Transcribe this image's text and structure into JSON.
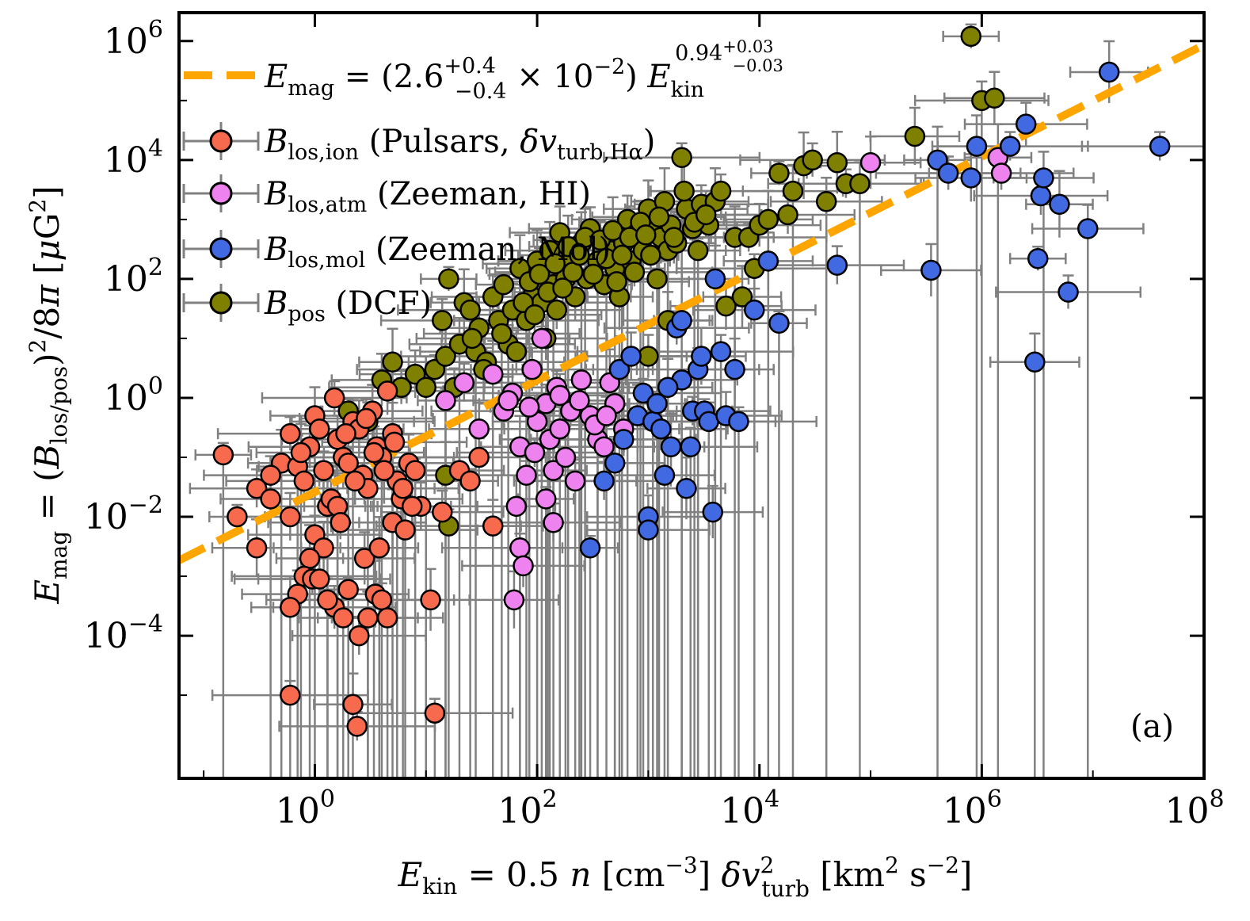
{
  "chart_data": {
    "type": "scatter",
    "title": "",
    "xlabel": "E_kin = 0.5 n [cm^-3] δv_turb^2 [km^2 s^-2]",
    "ylabel": "E_mag = (B_los/pos)^2 / 8π [μG^2]",
    "x_scale": "log",
    "y_scale": "log",
    "xlim": [
      0.06,
      100000000.0
    ],
    "ylim": [
      4e-07,
      3000000.0
    ],
    "x_ticks": [
      {
        "v": 1,
        "base": "10",
        "exp": "0"
      },
      {
        "v": 100,
        "base": "10",
        "exp": "2"
      },
      {
        "v": 10000,
        "base": "10",
        "exp": "4"
      },
      {
        "v": 1000000,
        "base": "10",
        "exp": "6"
      },
      {
        "v": 100000000,
        "base": "10",
        "exp": "8"
      }
    ],
    "y_ticks": [
      {
        "v": 0.0001,
        "base": "10",
        "exp": "−4"
      },
      {
        "v": 0.01,
        "base": "10",
        "exp": "−2"
      },
      {
        "v": 1,
        "base": "10",
        "exp": "0"
      },
      {
        "v": 100,
        "base": "10",
        "exp": "2"
      },
      {
        "v": 10000,
        "base": "10",
        "exp": "4"
      },
      {
        "v": 1000000,
        "base": "10",
        "exp": "6"
      }
    ],
    "panel_label": "(a)",
    "legend_placement": "top-left",
    "fit": {
      "name": "E_mag = (2.6 +0.4 −0.4 × 10^−2) E_kin ^(0.94 +0.03 −0.03)",
      "A": 0.026,
      "A_err_plus": 0.004,
      "A_err_minus": 0.004,
      "exponent": 0.94,
      "exp_err_plus": 0.03,
      "exp_err_minus": 0.03,
      "color": "#FFA500"
    },
    "series": [
      {
        "name": "B_los,ion (Pulsars, δv_turb,Hα)",
        "color": "#F86A4D",
        "points": [
          [
            0.15,
            0.11
          ],
          [
            0.3,
            0.03
          ],
          [
            0.4,
            0.02
          ],
          [
            0.5,
            0.08
          ],
          [
            0.6,
            0.25
          ],
          [
            0.6,
            0.01
          ],
          [
            0.7,
            0.07
          ],
          [
            0.8,
            0.04
          ],
          [
            0.9,
            0.15
          ],
          [
            1.0,
            0.5
          ],
          [
            1.1,
            0.3
          ],
          [
            1.2,
            0.06
          ],
          [
            1.3,
            0.015
          ],
          [
            1.4,
            0.02
          ],
          [
            1.5,
            1.0
          ],
          [
            1.6,
            0.2
          ],
          [
            1.8,
            0.1
          ],
          [
            2.0,
            0.08
          ],
          [
            2.2,
            0.4
          ],
          [
            2.5,
            0.3
          ],
          [
            2.7,
            0.05
          ],
          [
            3.0,
            0.03
          ],
          [
            3.3,
            0.6
          ],
          [
            3.6,
            0.15
          ],
          [
            4.0,
            0.1
          ],
          [
            4.5,
            1.3
          ],
          [
            5.0,
            0.25
          ],
          [
            5.5,
            0.04
          ],
          [
            6.0,
            0.02
          ],
          [
            7.0,
            0.08
          ],
          [
            8.0,
            0.06
          ],
          [
            1.0,
            0.005
          ],
          [
            1.2,
            0.003
          ],
          [
            0.9,
            0.002
          ],
          [
            0.8,
            0.001
          ],
          [
            0.7,
            0.0005
          ],
          [
            0.6,
            0.0003
          ],
          [
            0.6,
            1e-05
          ],
          [
            1.5,
            0.0003
          ],
          [
            1.8,
            0.0002
          ],
          [
            2.0,
            0.0006
          ],
          [
            2.5,
            0.0001
          ],
          [
            3.0,
            0.0002
          ],
          [
            3.5,
            0.0005
          ],
          [
            4.0,
            0.0004
          ],
          [
            4.5,
            0.0002
          ],
          [
            2.2,
            7e-06
          ],
          [
            2.4,
            3e-06
          ],
          [
            1.3,
            0.0004
          ],
          [
            0.3,
            0.003
          ],
          [
            0.2,
            0.01
          ],
          [
            0.4,
            0.05
          ],
          [
            2.8,
            0.002
          ],
          [
            5.0,
            0.008
          ],
          [
            6.5,
            0.006
          ],
          [
            9.0,
            0.015
          ],
          [
            11.0,
            0.0004
          ],
          [
            12.0,
            5e-06
          ],
          [
            14.0,
            0.012
          ],
          [
            20.0,
            0.06
          ],
          [
            25.0,
            0.04
          ],
          [
            30.0,
            0.1
          ],
          [
            40.0,
            0.007
          ],
          [
            1.6,
            0.015
          ],
          [
            1.7,
            0.008
          ],
          [
            2.3,
            0.04
          ],
          [
            3.8,
            0.003
          ],
          [
            0.95,
            0.0009
          ],
          [
            1.1,
            0.0009
          ],
          [
            0.75,
            0.12
          ],
          [
            1.9,
            0.25
          ],
          [
            2.9,
            0.45
          ],
          [
            3.4,
            0.12
          ],
          [
            4.2,
            0.06
          ],
          [
            5.2,
            0.18
          ],
          [
            6.2,
            0.03
          ],
          [
            7.5,
            0.015
          ]
        ]
      },
      {
        "name": "B_los,atm (Zeeman, HI)",
        "color": "#EE82EE",
        "points": [
          [
            15.0,
            0.9
          ],
          [
            22.0,
            1.8
          ],
          [
            30.0,
            0.3
          ],
          [
            40.0,
            2.5
          ],
          [
            50.0,
            0.6
          ],
          [
            60.0,
            1.2
          ],
          [
            70.0,
            0.15
          ],
          [
            80.0,
            0.05
          ],
          [
            90.0,
            3.0
          ],
          [
            100.0,
            0.4
          ],
          [
            110.0,
            10.0
          ],
          [
            120.0,
            0.8
          ],
          [
            130.0,
            0.2
          ],
          [
            140.0,
            0.06
          ],
          [
            150.0,
            1.5
          ],
          [
            160.0,
            0.3
          ],
          [
            180.0,
            0.1
          ],
          [
            200.0,
            0.6
          ],
          [
            220.0,
            0.04
          ],
          [
            250.0,
            2.0
          ],
          [
            300.0,
            0.5
          ],
          [
            350.0,
            0.2
          ],
          [
            400.0,
            0.15
          ],
          [
            450.0,
            1.8
          ],
          [
            500.0,
            0.8
          ],
          [
            600.0,
            0.3
          ],
          [
            65.0,
            0.015
          ],
          [
            70.0,
            0.003
          ],
          [
            75.0,
            0.0015
          ],
          [
            62.0,
            0.0004
          ],
          [
            120.0,
            0.02
          ],
          [
            140.0,
            0.008
          ],
          [
            100000.0,
            9000.0
          ],
          [
            1400000.0,
            11000.0
          ],
          [
            1500000.0,
            6000.0
          ],
          [
            55.0,
            0.9
          ],
          [
            85.0,
            0.7
          ],
          [
            95.0,
            0.12
          ],
          [
            160.0,
            1.1
          ],
          [
            240.0,
            0.9
          ],
          [
            330.0,
            0.35
          ],
          [
            420.0,
            0.5
          ]
        ]
      },
      {
        "name": "B_los,mol (Zeeman, Mol)",
        "color": "#4169E1",
        "points": [
          [
            300.0,
            0.003
          ],
          [
            400.0,
            0.04
          ],
          [
            500.0,
            0.08
          ],
          [
            550.0,
            3.0
          ],
          [
            600.0,
            0.2
          ],
          [
            700.0,
            5.0
          ],
          [
            800.0,
            0.5
          ],
          [
            900.0,
            1.2
          ],
          [
            1000.0,
            0.01
          ],
          [
            1100.0,
            0.4
          ],
          [
            1200.0,
            0.8
          ],
          [
            1300.0,
            0.3
          ],
          [
            1400.0,
            0.05
          ],
          [
            1600.0,
            0.15
          ],
          [
            1800.0,
            15.0
          ],
          [
            2000.0,
            2.0
          ],
          [
            2200.0,
            0.03
          ],
          [
            2500.0,
            0.6
          ],
          [
            2800.0,
            3.0
          ],
          [
            3000.0,
            5.0
          ],
          [
            3200.0,
            0.6
          ],
          [
            3500.0,
            0.4
          ],
          [
            3800.0,
            0.012
          ],
          [
            4000.0,
            100.0
          ],
          [
            4500.0,
            6.0
          ],
          [
            5000.0,
            0.5
          ],
          [
            6000.0,
            3.0
          ],
          [
            6500.0,
            0.4
          ],
          [
            9000.0,
            30.0
          ],
          [
            12000.0,
            200.0
          ],
          [
            15000.0,
            18.0
          ],
          [
            50000.0,
            170.0
          ],
          [
            350000.0,
            140.0
          ],
          [
            400000.0,
            10000.0
          ],
          [
            500000.0,
            6000.0
          ],
          [
            800000.0,
            5000.0
          ],
          [
            900000.0,
            17000.0
          ],
          [
            1800000.0,
            17000.0
          ],
          [
            2500000.0,
            40000.0
          ],
          [
            3000000.0,
            4.0
          ],
          [
            3200000.0,
            220.0
          ],
          [
            3400000.0,
            2500.0
          ],
          [
            3600000.0,
            5000.0
          ],
          [
            5000000.0,
            1800.0
          ],
          [
            6000000.0,
            60.0
          ],
          [
            9000000.0,
            700.0
          ],
          [
            14000000.0,
            300000.0
          ],
          [
            40000000.0,
            17000.0
          ],
          [
            1000.0,
            0.006
          ],
          [
            1500.0,
            1.5
          ],
          [
            2000.0,
            20.0
          ],
          [
            2400.0,
            0.15
          ]
        ]
      },
      {
        "name": "B_pos (DCF)",
        "color": "#808000",
        "points": [
          [
            2.0,
            0.6
          ],
          [
            3.0,
            0.4
          ],
          [
            4.0,
            2.0
          ],
          [
            5.0,
            4.0
          ],
          [
            6.0,
            1.5
          ],
          [
            8.0,
            2.5
          ],
          [
            10.0,
            1.5
          ],
          [
            12.0,
            3.0
          ],
          [
            14.0,
            20.0
          ],
          [
            15.0,
            5.0
          ],
          [
            16.0,
            100.0
          ],
          [
            18.0,
            1.5
          ],
          [
            20.0,
            8.0
          ],
          [
            22.0,
            40.0
          ],
          [
            25.0,
            30.0
          ],
          [
            28.0,
            6.0
          ],
          [
            30.0,
            15.0
          ],
          [
            35.0,
            4.0
          ],
          [
            40.0,
            50.0
          ],
          [
            45.0,
            20.0
          ],
          [
            50.0,
            80.0
          ],
          [
            55.0,
            8.0
          ],
          [
            60.0,
            30.0
          ],
          [
            70.0,
            150.0
          ],
          [
            80.0,
            20.0
          ],
          [
            90.0,
            50.0
          ],
          [
            100.0,
            200.0
          ],
          [
            110.0,
            40.0
          ],
          [
            120.0,
            10.0
          ],
          [
            130.0,
            300.0
          ],
          [
            140.0,
            80.0
          ],
          [
            150.0,
            30.0
          ],
          [
            160.0,
            600.0
          ],
          [
            180.0,
            100.0
          ],
          [
            200.0,
            200.0
          ],
          [
            220.0,
            50.0
          ],
          [
            250.0,
            400.0
          ],
          [
            280.0,
            100.0
          ],
          [
            300.0,
            700.0
          ],
          [
            350.0,
            200.0
          ],
          [
            400.0,
            80.0
          ],
          [
            450.0,
            300.0
          ],
          [
            500.0,
            150.0
          ],
          [
            550.0,
            50.0
          ],
          [
            600.0,
            400.0
          ],
          [
            650.0,
            1000.0
          ],
          [
            700.0,
            200.0
          ],
          [
            800.0,
            600.0
          ],
          [
            900.0,
            300.0
          ],
          [
            1000.0,
            1500.0
          ],
          [
            1100.0,
            800.0
          ],
          [
            1200.0,
            100.0
          ],
          [
            1300.0,
            500.0
          ],
          [
            1400.0,
            2000.0
          ],
          [
            1500.0,
            300.0
          ],
          [
            1600.0,
            800.0
          ],
          [
            1800.0,
            400.0
          ],
          [
            2000.0,
            11000.0
          ],
          [
            2200.0,
            1500.0
          ],
          [
            2500.0,
            700.0
          ],
          [
            2800.0,
            300.0
          ],
          [
            3000.0,
            1800.0
          ],
          [
            3500.0,
            800.0
          ],
          [
            4000.0,
            2000.0
          ],
          [
            4500.0,
            3000.0
          ],
          [
            5000.0,
            35.0
          ],
          [
            6000.0,
            500.0
          ],
          [
            8000.0,
            500.0
          ],
          [
            10000.0,
            800.0
          ],
          [
            12000.0,
            1000.0
          ],
          [
            15000.0,
            6000.0
          ],
          [
            18000.0,
            1200.0
          ],
          [
            20000.0,
            3000.0
          ],
          [
            25000.0,
            8000.0
          ],
          [
            30000.0,
            10000.0
          ],
          [
            40000.0,
            2000.0
          ],
          [
            50000.0,
            9000.0
          ],
          [
            60000.0,
            4000.0
          ],
          [
            80000.0,
            4000.0
          ],
          [
            250000.0,
            25000.0
          ],
          [
            800000.0,
            1200000.0
          ],
          [
            1000000.0,
            100000.0
          ],
          [
            1300000.0,
            110000.0
          ],
          [
            15.0,
            0.05
          ],
          [
            16.0,
            0.007
          ],
          [
            26.0,
            10.0
          ],
          [
            33.0,
            3.0
          ],
          [
            48.0,
            12.0
          ],
          [
            65.0,
            6.0
          ],
          [
            75.0,
            40.0
          ],
          [
            85.0,
            90.0
          ],
          [
            95.0,
            25.0
          ],
          [
            105.0,
            120.0
          ],
          [
            125.0,
            60.0
          ],
          [
            145.0,
            180.0
          ],
          [
            170.0,
            70.0
          ],
          [
            190.0,
            350.0
          ],
          [
            210.0,
            130.0
          ],
          [
            240.0,
            250.0
          ],
          [
            270.0,
            500.0
          ],
          [
            320.0,
            120.0
          ],
          [
            370.0,
            450.0
          ],
          [
            420.0,
            220.0
          ],
          [
            480.0,
            650.0
          ],
          [
            520.0,
            90.0
          ],
          [
            580.0,
            250.0
          ],
          [
            680.0,
            500.0
          ],
          [
            750.0,
            130.0
          ],
          [
            850.0,
            900.0
          ],
          [
            950.0,
            550.0
          ],
          [
            1050.0,
            250.0
          ],
          [
            1250.0,
            1100.0
          ],
          [
            1700.0,
            500.0
          ],
          [
            2100.0,
            3000.0
          ],
          [
            2600.0,
            900.0
          ],
          [
            3300.0,
            1200.0
          ],
          [
            7000.0,
            50.0
          ],
          [
            9000.0,
            150.0
          ],
          [
            1000.0,
            5.0
          ],
          [
            1500.0,
            20.0
          ]
        ]
      }
    ]
  }
}
